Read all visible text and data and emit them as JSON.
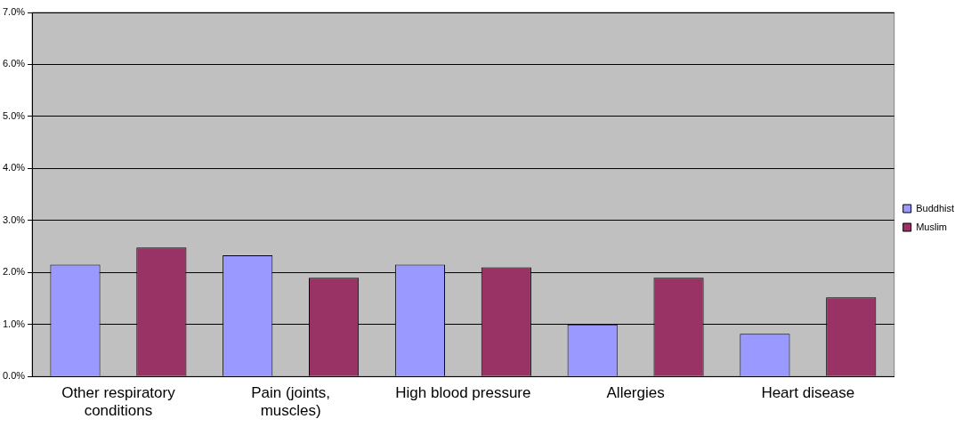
{
  "chart_data": {
    "type": "bar",
    "categories": [
      "Other respiratory conditions",
      "Pain (joints, muscles)",
      "High blood pressure",
      "Allergies",
      "Heart disease"
    ],
    "series": [
      {
        "name": "Buddhist",
        "color": "#9999ff",
        "values": [
          2.15,
          2.33,
          2.15,
          1.0,
          0.82
        ]
      },
      {
        "name": "Muslim",
        "color": "#993366",
        "values": [
          2.48,
          1.9,
          2.1,
          1.9,
          1.52
        ]
      }
    ],
    "ylim": [
      0,
      7
    ],
    "yticks": [
      {
        "value": 0,
        "label": "0.0%"
      },
      {
        "value": 1,
        "label": "1.0%"
      },
      {
        "value": 2,
        "label": "2.0%"
      },
      {
        "value": 3,
        "label": "3.0%"
      },
      {
        "value": 4,
        "label": "4.0%"
      },
      {
        "value": 5,
        "label": "5.0%"
      },
      {
        "value": 6,
        "label": "6.0%"
      },
      {
        "value": 7,
        "label": "7.0%"
      }
    ],
    "grid": "y",
    "legend": "right"
  }
}
